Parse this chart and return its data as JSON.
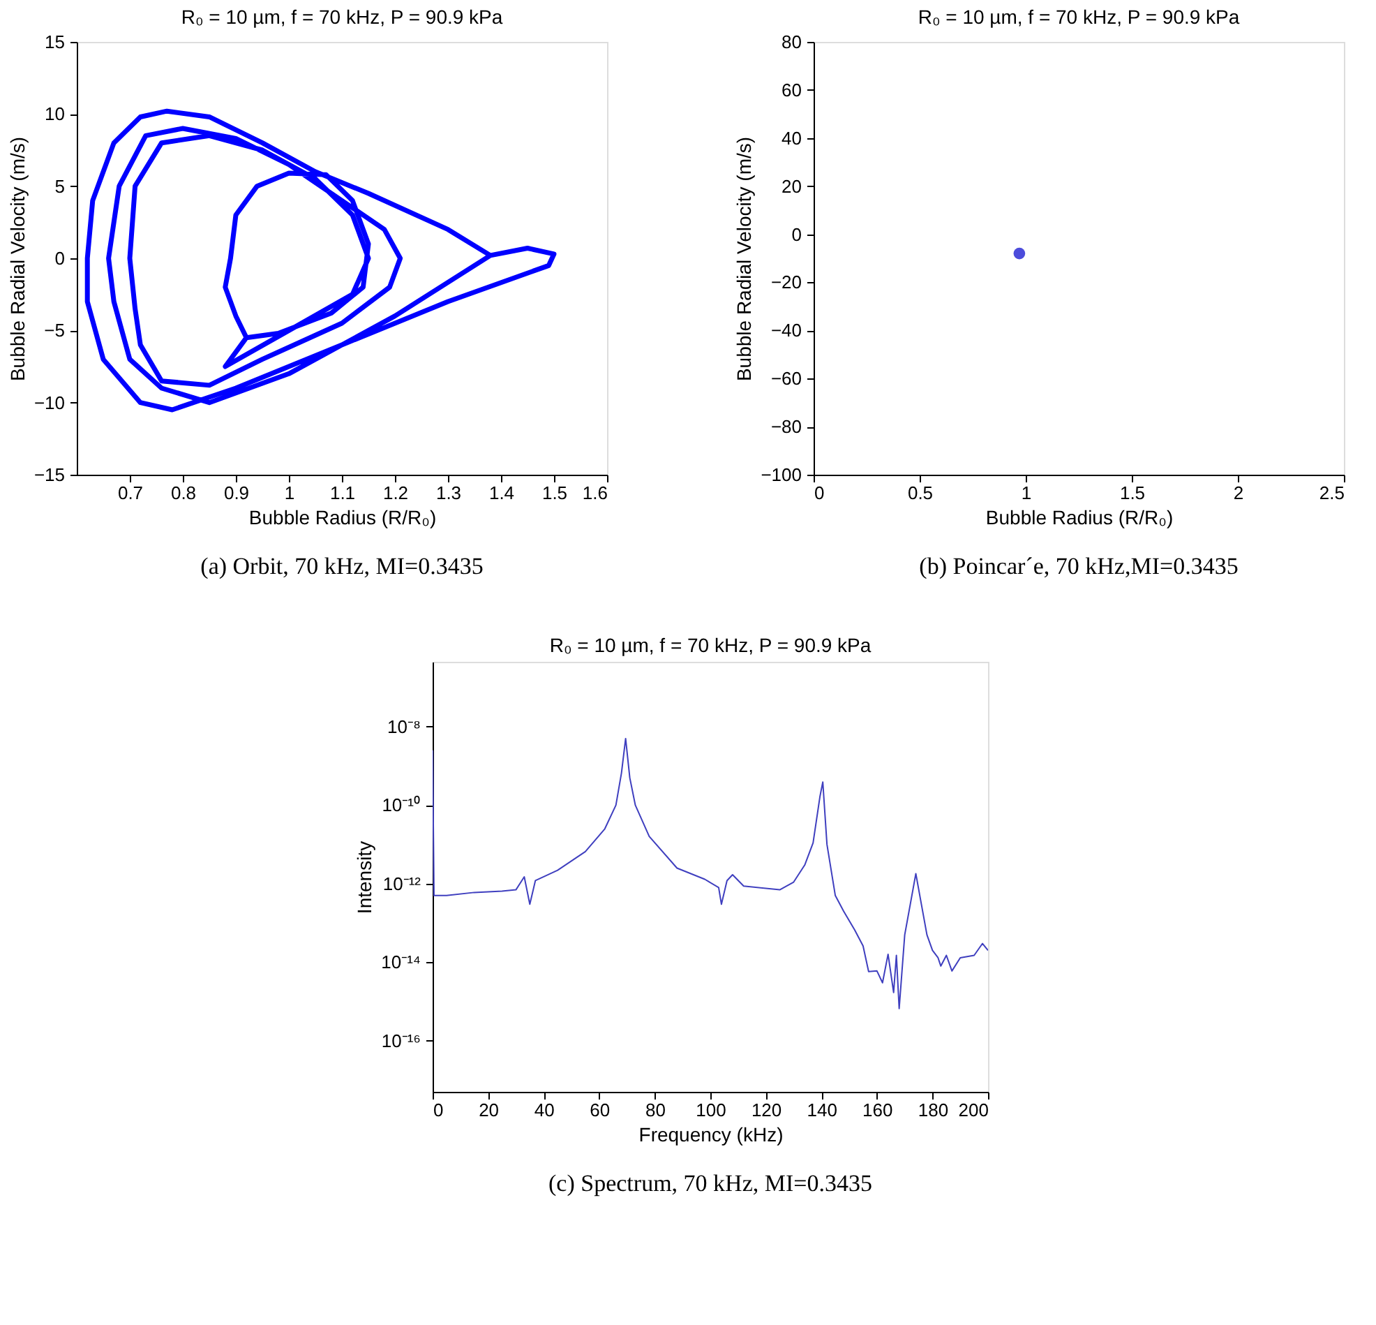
{
  "chart_data": [
    {
      "type": "line",
      "title": "R₀ = 10 µm, f = 70 kHz, P = 90.9 kPa",
      "xlabel": "Bubble Radius (R/R₀)",
      "ylabel": "Bubble Radial Velocity (m/s)",
      "annotations": [
        "(a) Orbit, 70 kHz, MI=0.3435"
      ],
      "xlim": [
        0.6,
        1.6
      ],
      "xticks": [
        0.7,
        0.8,
        0.9,
        1,
        1.1,
        1.2,
        1.3,
        1.4,
        1.5,
        1.6
      ],
      "ylim": [
        -15,
        15
      ],
      "yticks": [
        -15,
        -10,
        -5,
        0,
        5,
        10,
        15
      ],
      "grid": false,
      "line_style": "solid",
      "series": [
        {
          "color": "#0000ff",
          "x": [
            1.38,
            1.45,
            1.5,
            1.49,
            1.3,
            1.1,
            0.9,
            0.78,
            0.72,
            0.65,
            0.62,
            0.62,
            0.63,
            0.67,
            0.72,
            0.77,
            0.85,
            0.95,
            1.05,
            1.15,
            1.3,
            1.38,
            1.2,
            1.0,
            0.85,
            0.76,
            0.7,
            0.67,
            0.66,
            0.68,
            0.73,
            0.8,
            0.9,
            1.0,
            1.1,
            1.18,
            1.21,
            1.19,
            1.1,
            0.95,
            0.85,
            0.76,
            0.72,
            0.71,
            0.7,
            0.71,
            0.76,
            0.85,
            0.95,
            1.05,
            1.12,
            1.15,
            1.12,
            1.0,
            0.88,
            0.92,
            0.98,
            1.08,
            1.14,
            1.15,
            1.12,
            1.07,
            1.0,
            0.94,
            0.9,
            0.89,
            0.88,
            0.9,
            0.92
          ],
          "values": [
            0.2,
            0.7,
            0.3,
            -0.5,
            -3,
            -6,
            -9,
            -10.5,
            -10,
            -7,
            -3,
            0,
            4,
            8,
            9.8,
            10.2,
            9.8,
            8,
            6,
            4.5,
            2,
            0.2,
            -4,
            -8,
            -10,
            -9,
            -7,
            -3,
            0,
            5,
            8.5,
            9,
            8.3,
            6.5,
            4,
            2,
            0,
            -2,
            -4.5,
            -7,
            -8.8,
            -8.5,
            -6,
            -3.5,
            0,
            5,
            8,
            8.5,
            7.5,
            5.5,
            3,
            0,
            -2.5,
            -5,
            -7.5,
            -5.5,
            -5.2,
            -3.8,
            -2,
            1,
            4,
            5.8,
            5.9,
            5,
            3,
            0,
            -2,
            -4,
            -5.5
          ]
        }
      ]
    },
    {
      "type": "scatter",
      "title": "R₀ = 10 µm, f = 70 kHz, P = 90.9 kPa",
      "xlabel": "Bubble Radius (R/R₀)",
      "ylabel": "Bubble Radial Velocity (m/s)",
      "annotations": [
        "(b) Poincar´e, 70 kHz,MI=0.3435"
      ],
      "xlim": [
        0,
        2.5
      ],
      "xticks": [
        0,
        0.5,
        1,
        1.5,
        2,
        2.5
      ],
      "ylim": [
        -100,
        80
      ],
      "yticks": [
        -100,
        -80,
        -60,
        -40,
        -20,
        0,
        20,
        40,
        60,
        80
      ],
      "grid": false,
      "marker": "circle",
      "series": [
        {
          "color": "#0000cc",
          "x": [
            0.97
          ],
          "values": [
            -8
          ]
        }
      ]
    },
    {
      "type": "line",
      "title": "R₀ = 10 µm, f = 70 kHz, P = 90.9 kPa",
      "xlabel": "Frequency (kHz)",
      "ylabel": "Intensity",
      "annotations": [
        "(c) Spectrum, 70 kHz, MI=0.3435"
      ],
      "xlim": [
        0,
        200
      ],
      "xticks": [
        0,
        20,
        40,
        60,
        80,
        100,
        120,
        140,
        160,
        180,
        200
      ],
      "log": "y",
      "ylim": [
        5e-18,
        4.5e-07
      ],
      "yticks": [
        {
          "value": 1e-08,
          "label": "10⁻⁸"
        },
        {
          "value": 1e-10,
          "label": "10⁻¹⁰"
        },
        {
          "value": 1e-12,
          "label": "10⁻¹²"
        },
        {
          "value": 1e-14,
          "label": "10⁻¹⁴"
        },
        {
          "value": 1e-16,
          "label": "10⁻¹⁶"
        }
      ],
      "grid": false,
      "line_style": "solid",
      "series": [
        {
          "color": "#3f3fbf",
          "x": [
            0,
            0.5,
            5,
            15,
            25,
            30,
            33,
            35,
            37,
            45,
            55,
            62,
            66,
            68,
            69.5,
            71,
            73,
            78,
            88,
            98,
            103,
            104,
            106,
            108,
            112,
            125,
            130,
            134,
            137,
            139.5,
            140.5,
            142,
            145,
            148,
            152,
            155,
            157,
            160,
            162,
            164,
            166,
            167,
            168,
            170,
            172,
            174,
            176,
            178,
            180,
            182,
            183,
            185,
            187,
            190,
            195,
            198,
            200
          ],
          "values": [
            2.5e-09,
            5e-13,
            5e-13,
            6e-13,
            6.5e-13,
            7e-13,
            1.5e-12,
            3e-13,
            1.2e-12,
            2.2e-12,
            6.6e-12,
            2.5e-11,
            1e-10,
            6.6e-10,
            5e-09,
            5e-10,
            1e-10,
            1.6e-11,
            2.5e-12,
            1.3e-12,
            8e-13,
            3e-13,
            1.2e-12,
            1.7e-12,
            8.7e-13,
            7e-13,
            1.1e-12,
            3e-12,
            1.1e-11,
            1.7e-10,
            3.9e-10,
            1e-11,
            5e-13,
            2e-13,
            6.6e-14,
            2.6e-14,
            5.8e-15,
            6e-15,
            3e-15,
            1.6e-14,
            1.7e-15,
            1.5e-14,
            6.6e-16,
            5e-14,
            3e-13,
            1.8e-12,
            3e-13,
            5e-14,
            2e-14,
            1.3e-14,
            8e-15,
            1.5e-14,
            6e-15,
            1.3e-14,
            1.5e-14,
            3e-14,
            2e-14
          ]
        }
      ]
    }
  ]
}
